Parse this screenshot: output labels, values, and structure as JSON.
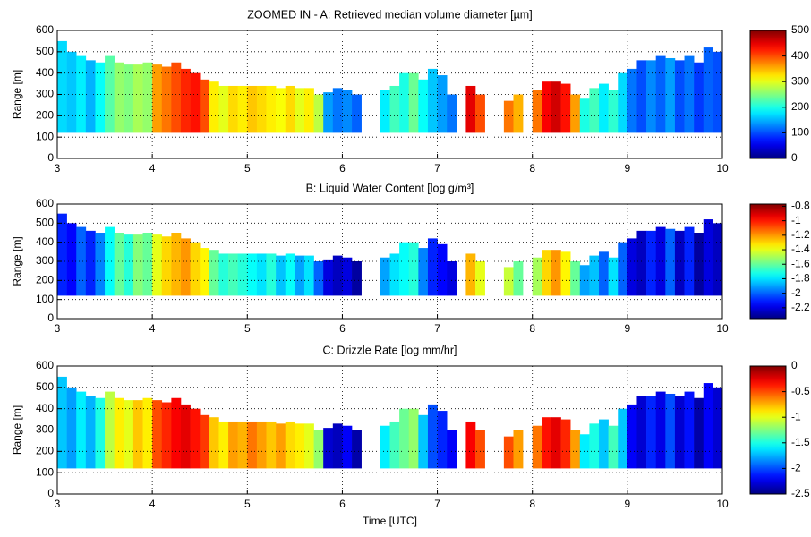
{
  "chart_data": [
    {
      "type": "heatmap",
      "title": "ZOOMED IN - A: Retrieved median volume diameter [µm]",
      "ylabel": "Range [m]",
      "x": [
        3.05,
        3.15,
        3.25,
        3.35,
        3.45,
        3.55,
        3.65,
        3.75,
        3.85,
        3.95,
        4.05,
        4.15,
        4.25,
        4.35,
        4.45,
        4.55,
        4.65,
        4.75,
        4.85,
        4.95,
        5.05,
        5.15,
        5.25,
        5.35,
        5.45,
        5.55,
        5.65,
        5.75,
        5.85,
        5.95,
        6.05,
        6.15,
        6.25,
        6.35,
        6.45,
        6.55,
        6.65,
        6.75,
        6.85,
        6.95,
        7.05,
        7.15,
        7.25,
        7.35,
        7.45,
        7.55,
        7.65,
        7.75,
        7.85,
        7.95,
        8.05,
        8.15,
        8.25,
        8.35,
        8.45,
        8.55,
        8.65,
        8.75,
        8.85,
        8.95,
        9.05,
        9.15,
        9.25,
        9.35,
        9.45,
        9.55,
        9.65,
        9.75,
        9.85,
        9.95
      ],
      "tops": [
        550,
        500,
        480,
        460,
        450,
        480,
        450,
        440,
        440,
        450,
        440,
        430,
        450,
        420,
        400,
        370,
        360,
        340,
        340,
        340,
        340,
        340,
        340,
        330,
        340,
        330,
        330,
        300,
        310,
        330,
        320,
        300,
        null,
        null,
        320,
        340,
        400,
        400,
        370,
        420,
        390,
        300,
        null,
        340,
        300,
        null,
        null,
        270,
        300,
        null,
        320,
        360,
        360,
        350,
        300,
        280,
        330,
        350,
        320,
        400,
        420,
        460,
        460,
        480,
        470,
        460,
        480,
        450,
        520,
        500
      ],
      "base": 120,
      "values": [
        170,
        160,
        180,
        150,
        190,
        230,
        260,
        250,
        270,
        260,
        360,
        380,
        400,
        420,
        430,
        400,
        320,
        300,
        330,
        320,
        340,
        330,
        320,
        310,
        330,
        300,
        320,
        280,
        140,
        120,
        130,
        110,
        null,
        null,
        180,
        220,
        200,
        240,
        190,
        160,
        140,
        120,
        null,
        450,
        400,
        null,
        null,
        380,
        350,
        null,
        380,
        440,
        460,
        430,
        360,
        200,
        220,
        180,
        210,
        170,
        120,
        100,
        130,
        110,
        140,
        100,
        120,
        90,
        110,
        100
      ],
      "colormap": "jet",
      "clim": [
        0,
        500
      ],
      "cticks": [
        0,
        100,
        200,
        300,
        400,
        500
      ],
      "xlim": [
        3,
        10
      ],
      "xticks": [
        3,
        4,
        5,
        6,
        7,
        8,
        9,
        10
      ],
      "ylim": [
        0,
        600
      ],
      "yticks": [
        0,
        100,
        200,
        300,
        400,
        500,
        600
      ],
      "grid": true
    },
    {
      "type": "heatmap",
      "title": "B: Liquid Water Content [log g/m³]",
      "ylabel": "Range [m]",
      "x": [
        3.05,
        3.15,
        3.25,
        3.35,
        3.45,
        3.55,
        3.65,
        3.75,
        3.85,
        3.95,
        4.05,
        4.15,
        4.25,
        4.35,
        4.45,
        4.55,
        4.65,
        4.75,
        4.85,
        4.95,
        5.05,
        5.15,
        5.25,
        5.35,
        5.45,
        5.55,
        5.65,
        5.75,
        5.85,
        5.95,
        6.05,
        6.15,
        6.25,
        6.35,
        6.45,
        6.55,
        6.65,
        6.75,
        6.85,
        6.95,
        7.05,
        7.15,
        7.25,
        7.35,
        7.45,
        7.55,
        7.65,
        7.75,
        7.85,
        7.95,
        8.05,
        8.15,
        8.25,
        8.35,
        8.45,
        8.55,
        8.65,
        8.75,
        8.85,
        8.95,
        9.05,
        9.15,
        9.25,
        9.35,
        9.45,
        9.55,
        9.65,
        9.75,
        9.85,
        9.95
      ],
      "tops": [
        550,
        500,
        480,
        460,
        450,
        480,
        450,
        440,
        440,
        450,
        440,
        430,
        450,
        420,
        400,
        370,
        360,
        340,
        340,
        340,
        340,
        340,
        340,
        330,
        340,
        330,
        330,
        300,
        310,
        330,
        320,
        300,
        null,
        null,
        320,
        340,
        400,
        400,
        370,
        420,
        390,
        300,
        null,
        340,
        300,
        null,
        null,
        270,
        300,
        null,
        320,
        360,
        360,
        350,
        300,
        280,
        330,
        350,
        320,
        400,
        420,
        460,
        460,
        480,
        470,
        460,
        480,
        450,
        520,
        500
      ],
      "base": 120,
      "values": [
        -2.1,
        -2.15,
        -2.0,
        -2.1,
        -1.95,
        -1.75,
        -1.6,
        -1.7,
        -1.55,
        -1.6,
        -1.4,
        -1.3,
        -1.25,
        -1.2,
        -1.3,
        -1.35,
        -1.6,
        -1.7,
        -1.65,
        -1.7,
        -1.75,
        -1.8,
        -1.7,
        -1.85,
        -1.75,
        -1.9,
        -1.8,
        -2.0,
        -2.2,
        -2.25,
        -2.2,
        -2.3,
        null,
        null,
        -1.9,
        -1.8,
        -1.75,
        -1.7,
        -1.95,
        -2.1,
        -2.15,
        -2.2,
        null,
        -1.25,
        -1.4,
        null,
        null,
        -1.45,
        -1.6,
        null,
        -1.5,
        -1.3,
        -1.2,
        -1.35,
        -1.6,
        -1.9,
        -1.85,
        -2.0,
        -1.8,
        -2.0,
        -2.2,
        -2.25,
        -2.1,
        -2.2,
        -2.0,
        -2.25,
        -2.1,
        -2.3,
        -2.2,
        -2.25
      ],
      "colormap": "jet",
      "clim": [
        -2.35,
        -0.77
      ],
      "cticks": [
        -2.2,
        -2,
        -1.8,
        -1.6,
        -1.4,
        -1.2,
        -1,
        -0.8
      ],
      "xlim": [
        3,
        10
      ],
      "xticks": [
        3,
        4,
        5,
        6,
        7,
        8,
        9,
        10
      ],
      "ylim": [
        0,
        600
      ],
      "yticks": [
        0,
        100,
        200,
        300,
        400,
        500,
        600
      ],
      "grid": true
    },
    {
      "type": "heatmap",
      "title": "C: Drizzle Rate [log mm/hr]",
      "ylabel": "Range [m]",
      "xlabel": "Time [UTC]",
      "x": [
        3.05,
        3.15,
        3.25,
        3.35,
        3.45,
        3.55,
        3.65,
        3.75,
        3.85,
        3.95,
        4.05,
        4.15,
        4.25,
        4.35,
        4.45,
        4.55,
        4.65,
        4.75,
        4.85,
        4.95,
        5.05,
        5.15,
        5.25,
        5.35,
        5.45,
        5.55,
        5.65,
        5.75,
        5.85,
        5.95,
        6.05,
        6.15,
        6.25,
        6.35,
        6.45,
        6.55,
        6.65,
        6.75,
        6.85,
        6.95,
        7.05,
        7.15,
        7.25,
        7.35,
        7.45,
        7.55,
        7.65,
        7.75,
        7.85,
        7.95,
        8.05,
        8.15,
        8.25,
        8.35,
        8.45,
        8.55,
        8.65,
        8.75,
        8.85,
        8.95,
        9.05,
        9.15,
        9.25,
        9.35,
        9.45,
        9.55,
        9.65,
        9.75,
        9.85,
        9.95
      ],
      "tops": [
        550,
        500,
        480,
        460,
        450,
        480,
        450,
        440,
        440,
        450,
        440,
        430,
        450,
        420,
        400,
        370,
        360,
        340,
        340,
        340,
        340,
        340,
        340,
        330,
        340,
        330,
        330,
        300,
        310,
        330,
        320,
        300,
        null,
        null,
        320,
        340,
        400,
        400,
        370,
        420,
        390,
        300,
        null,
        340,
        300,
        null,
        null,
        270,
        300,
        null,
        320,
        360,
        360,
        350,
        300,
        280,
        330,
        350,
        320,
        400,
        420,
        460,
        460,
        480,
        470,
        460,
        480,
        450,
        520,
        500
      ],
      "base": 120,
      "values": [
        -1.7,
        -1.8,
        -1.6,
        -1.75,
        -1.5,
        -1.1,
        -0.9,
        -1.0,
        -0.8,
        -0.9,
        -0.5,
        -0.4,
        -0.3,
        -0.25,
        -0.35,
        -0.45,
        -0.8,
        -0.9,
        -0.7,
        -0.75,
        -0.6,
        -0.7,
        -0.8,
        -0.7,
        -0.85,
        -0.9,
        -1.0,
        -1.2,
        -2.3,
        -2.35,
        -2.2,
        -2.4,
        null,
        null,
        -1.6,
        -1.4,
        -1.3,
        -1.2,
        -1.7,
        -2.0,
        -2.1,
        -2.2,
        null,
        -0.3,
        -0.5,
        null,
        null,
        -0.5,
        -0.7,
        null,
        -0.6,
        -0.35,
        -0.25,
        -0.4,
        -0.7,
        -1.6,
        -1.5,
        -1.7,
        -1.4,
        -1.7,
        -2.2,
        -2.3,
        -2.1,
        -2.25,
        -2.0,
        -2.3,
        -2.15,
        -2.4,
        -2.2,
        -2.3
      ],
      "colormap": "jet",
      "clim": [
        -2.5,
        0
      ],
      "cticks": [
        -2.5,
        -2,
        -1.5,
        -1,
        -0.5,
        0
      ],
      "xlim": [
        3,
        10
      ],
      "xticks": [
        3,
        4,
        5,
        6,
        7,
        8,
        9,
        10
      ],
      "ylim": [
        0,
        600
      ],
      "yticks": [
        0,
        100,
        200,
        300,
        400,
        500,
        600
      ],
      "grid": true
    }
  ]
}
